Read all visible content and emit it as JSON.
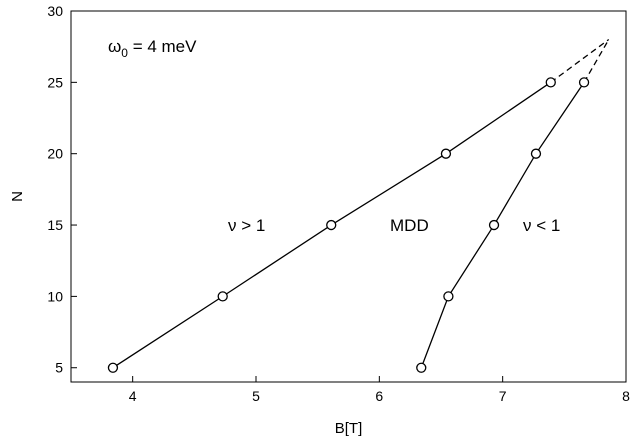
{
  "chart_data": {
    "type": "line",
    "xlabel": "B[T]",
    "ylabel": "N",
    "xlim": [
      3.5,
      8
    ],
    "ylim": [
      4,
      30
    ],
    "xticks": [
      4,
      5,
      6,
      7,
      8
    ],
    "yticks": [
      5,
      10,
      15,
      20,
      25,
      30
    ],
    "grid": false,
    "series": [
      {
        "style": "solid-with-open-circles",
        "x": [
          3.84,
          4.73,
          5.61,
          6.54,
          7.39
        ],
        "y": [
          5,
          10,
          15,
          20,
          25
        ]
      },
      {
        "style": "solid-with-open-circles",
        "x": [
          6.34,
          6.56,
          6.93,
          7.27,
          7.66
        ],
        "y": [
          5,
          10,
          15,
          20,
          25
        ]
      },
      {
        "style": "dashed",
        "x": [
          7.39,
          7.86
        ],
        "y": [
          25,
          28
        ]
      },
      {
        "style": "dashed",
        "x": [
          7.66,
          7.86
        ],
        "y": [
          25,
          28
        ]
      }
    ],
    "annotations": [
      {
        "id": "omega",
        "prefix": "ω",
        "sub": "0",
        "suffix": " = 4 meV"
      },
      {
        "id": "nu-gt",
        "text": "ν > 1"
      },
      {
        "id": "mdd",
        "text": "MDD"
      },
      {
        "id": "nu-lt",
        "text": "ν < 1"
      }
    ]
  }
}
